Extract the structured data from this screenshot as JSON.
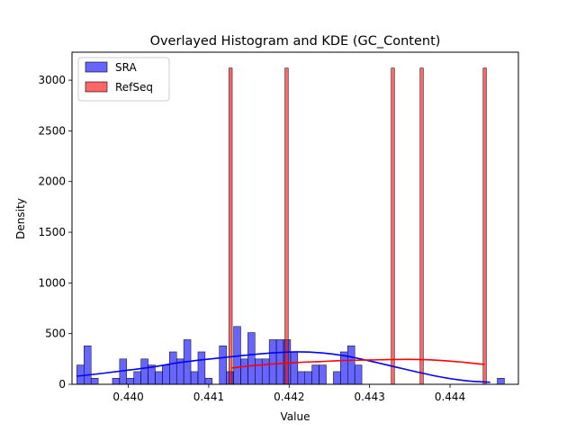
{
  "chart_data": {
    "type": "bar",
    "title": "Overlayed Histogram and KDE (GC_Content)",
    "xlabel": "Value",
    "ylabel": "Density",
    "xlim": [
      0.4393,
      0.44485
    ],
    "ylim": [
      0,
      3276
    ],
    "xticks": [
      0.44,
      0.441,
      0.442,
      0.443,
      0.444
    ],
    "xtick_labels": [
      "0.440",
      "0.441",
      "0.442",
      "0.443",
      "0.444"
    ],
    "yticks": [
      0,
      500,
      1000,
      1500,
      2000,
      2500,
      3000
    ],
    "ytick_labels": [
      "0",
      "500",
      "1000",
      "1500",
      "2000",
      "2500",
      "3000"
    ],
    "legend_position": "upper-left",
    "series": [
      {
        "name": "SRA",
        "kind": "histogram",
        "color": "#0000ff",
        "bin_start": 0.43936,
        "bin_width": 8.86e-05,
        "values": [
          190,
          380,
          60,
          0,
          0,
          60,
          250,
          60,
          125,
          250,
          190,
          125,
          190,
          320,
          250,
          440,
          125,
          320,
          60,
          0,
          380,
          125,
          570,
          250,
          510,
          250,
          250,
          440,
          440,
          440,
          320,
          125,
          125,
          190,
          190,
          0,
          125,
          320,
          380,
          190,
          0,
          0,
          0,
          0,
          0,
          0,
          0,
          0,
          0,
          0,
          0,
          0,
          0,
          0,
          0,
          0,
          0,
          0,
          0,
          60
        ]
      },
      {
        "name": "RefSeq",
        "kind": "histogram",
        "color": "#ff0000",
        "bin_width": 4.05e-05,
        "x": [
          0.441272,
          0.441968,
          0.443289,
          0.443648,
          0.444432
        ],
        "values": [
          3120,
          3120,
          3120,
          3120,
          3120
        ]
      }
    ],
    "kde": [
      {
        "name": "SRA",
        "color": "#0000ff",
        "x": [
          0.43936,
          0.4397,
          0.44,
          0.4403,
          0.4406,
          0.4409,
          0.4412,
          0.4415,
          0.4418,
          0.4421,
          0.4424,
          0.4427,
          0.443,
          0.4433,
          0.4436,
          0.4439,
          0.4442,
          0.4445
        ],
        "y": [
          80,
          110,
          140,
          170,
          210,
          240,
          265,
          290,
          310,
          320,
          310,
          280,
          230,
          175,
          120,
          70,
          35,
          20
        ]
      },
      {
        "name": "RefSeq",
        "color": "#ff0000",
        "x": [
          0.44128,
          0.4415,
          0.4418,
          0.4421,
          0.4424,
          0.4427,
          0.443,
          0.4433,
          0.4436,
          0.4439,
          0.4442,
          0.44443
        ],
        "y": [
          160,
          180,
          200,
          215,
          225,
          235,
          240,
          245,
          245,
          235,
          215,
          195
        ]
      }
    ]
  }
}
